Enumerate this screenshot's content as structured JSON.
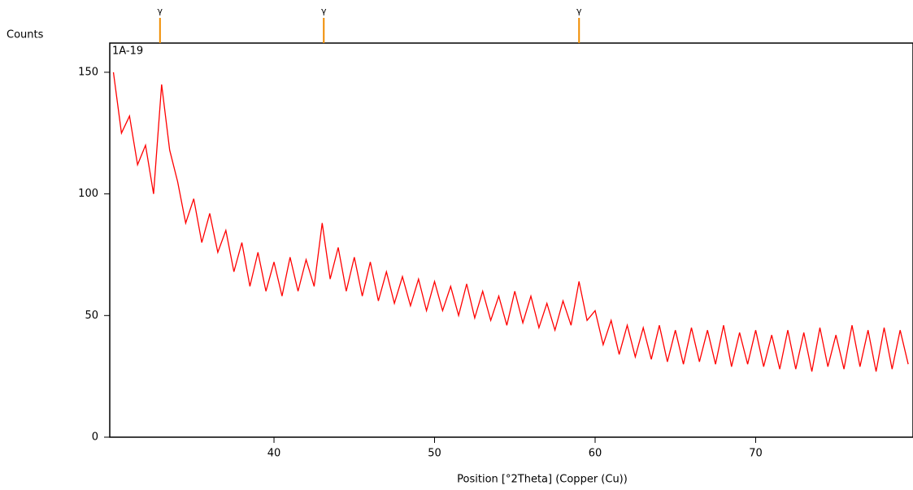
{
  "chart_data": {
    "type": "line",
    "y_label": "Counts",
    "x_label": "Position [°2Theta] (Copper (Cu))",
    "sample_label": "1A-19",
    "x": [
      30,
      30.5,
      31,
      31.5,
      32,
      32.5,
      33,
      33.5,
      34,
      34.5,
      35,
      35.5,
      36,
      36.5,
      37,
      37.5,
      38,
      38.5,
      39,
      39.5,
      40,
      40.5,
      41,
      41.5,
      42,
      42.5,
      43,
      43.5,
      44,
      44.5,
      45,
      45.5,
      46,
      46.5,
      47,
      47.5,
      48,
      48.5,
      49,
      49.5,
      50,
      50.5,
      51,
      51.5,
      52,
      52.5,
      53,
      53.5,
      54,
      54.5,
      55,
      55.5,
      56,
      56.5,
      57,
      57.5,
      58,
      58.5,
      59,
      59.5,
      60,
      60.5,
      61,
      61.5,
      62,
      62.5,
      63,
      63.5,
      64,
      64.5,
      65,
      65.5,
      66,
      66.5,
      67,
      67.5,
      68,
      68.5,
      69,
      69.5,
      70,
      70.5,
      71,
      71.5,
      72,
      72.5,
      73,
      73.5,
      74,
      74.5,
      75,
      75.5,
      76,
      76.5,
      77,
      77.5,
      78,
      78.5,
      79,
      79.5
    ],
    "series": [
      {
        "color": "#ff0000",
        "values": [
          150,
          125,
          132,
          112,
          120,
          100,
          145,
          118,
          105,
          88,
          98,
          80,
          92,
          76,
          85,
          68,
          80,
          62,
          76,
          60,
          72,
          58,
          74,
          60,
          73,
          62,
          88,
          65,
          78,
          60,
          74,
          58,
          72,
          56,
          68,
          55,
          66,
          54,
          65,
          52,
          64,
          52,
          62,
          50,
          63,
          49,
          60,
          48,
          58,
          46,
          60,
          47,
          58,
          45,
          55,
          44,
          56,
          46,
          64,
          48,
          52,
          38,
          48,
          34,
          46,
          33,
          45,
          32,
          46,
          31,
          44,
          30,
          45,
          31,
          44,
          30,
          46,
          29,
          43,
          30,
          44,
          29,
          42,
          28,
          44,
          28,
          43,
          27,
          45,
          29,
          42,
          28,
          46,
          29,
          44,
          27,
          45,
          28,
          44,
          30
        ]
      }
    ],
    "markers": [
      {
        "x": 32.9,
        "label": "γ"
      },
      {
        "x": 43.1,
        "label": "γ"
      },
      {
        "x": 59.0,
        "label": "γ"
      }
    ],
    "xlim": [
      29.77,
      79.8
    ],
    "ylim": [
      0,
      162
    ],
    "xticks": [
      40,
      50,
      60,
      70
    ],
    "yticks": [
      0,
      50,
      100,
      150
    ]
  }
}
